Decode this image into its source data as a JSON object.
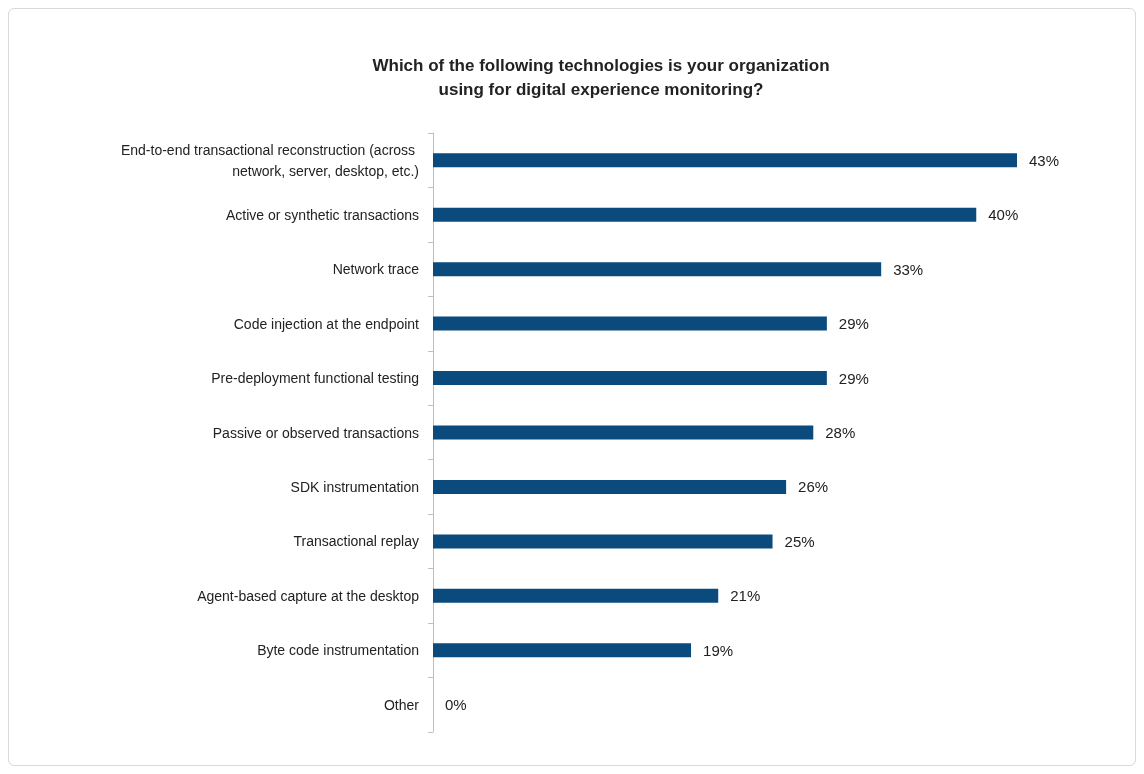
{
  "chart_data": {
    "type": "bar",
    "orientation": "horizontal",
    "title": "Which of the following technologies is your organization\nusing for digital experience monitoring?",
    "categories": [
      "End-to-end transactional reconstruction (across network, server, desktop, etc.)",
      "Active or synthetic transactions",
      "Network trace",
      "Code injection at the endpoint",
      "Pre-deployment functional testing",
      "Passive or observed transactions",
      "SDK instrumentation",
      "Transactional replay",
      "Agent-based capture at the desktop",
      "Byte code instrumentation",
      "Other"
    ],
    "values": [
      43,
      40,
      33,
      29,
      29,
      28,
      26,
      25,
      21,
      19,
      0
    ],
    "value_labels": [
      "43%",
      "40%",
      "33%",
      "29%",
      "29%",
      "28%",
      "26%",
      "25%",
      "21%",
      "19%",
      "0%"
    ],
    "color": "#0b4a7d",
    "tick_labels": "y"
  }
}
